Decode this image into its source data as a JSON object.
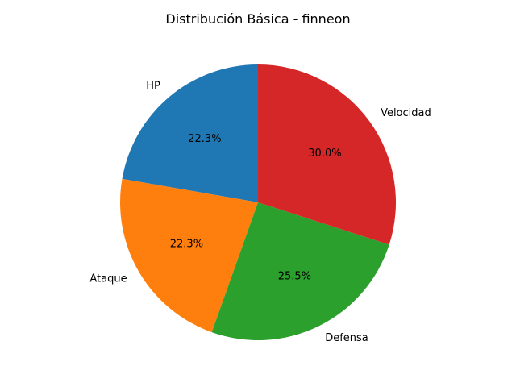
{
  "chart_data": {
    "type": "pie",
    "title": "Distribución Básica - finneon",
    "start_angle_deg": 90,
    "direction": "counterclockwise",
    "slices": [
      {
        "label": "HP",
        "value": 22.3,
        "pct_label": "22.3%",
        "color": "#1f77b4"
      },
      {
        "label": "Ataque",
        "value": 22.3,
        "pct_label": "22.3%",
        "color": "#ff7f0e"
      },
      {
        "label": "Defensa",
        "value": 25.5,
        "pct_label": "25.5%",
        "color": "#2ca02c"
      },
      {
        "label": "Velocidad",
        "value": 30.0,
        "pct_label": "30.0%",
        "color": "#d62728"
      }
    ]
  }
}
